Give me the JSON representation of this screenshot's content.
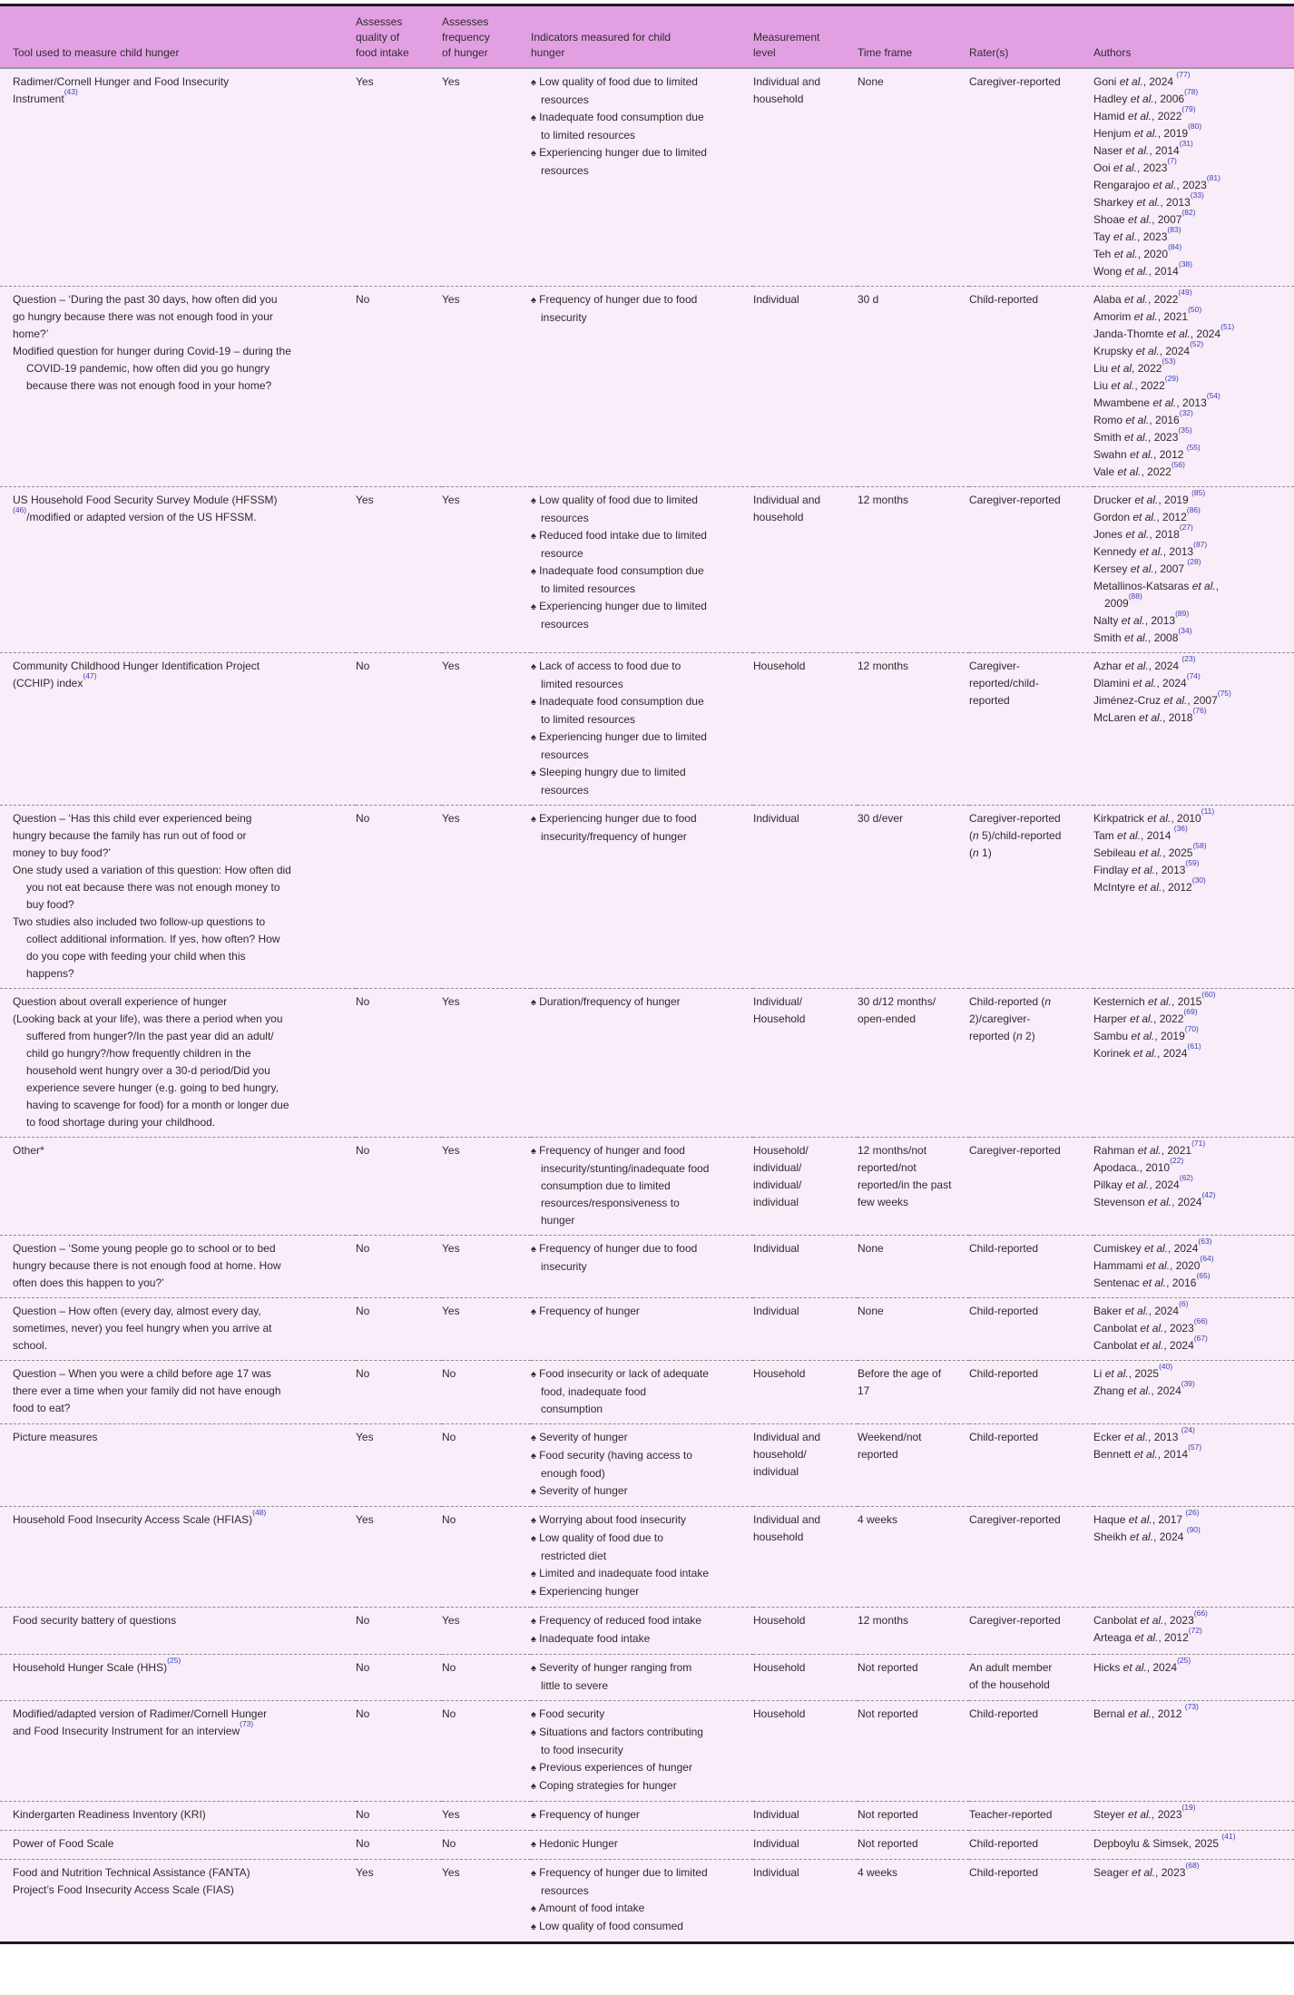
{
  "colors": {
    "header_bg": "#e2a0e3",
    "body_bg": "#f8edf8",
    "text": "#2e2a2e",
    "ref_blue": "#3b3fb8",
    "rule_dark": "#1c1c1c",
    "rule_gray": "#9a9a9a",
    "dash_gray": "#8d8d8d"
  },
  "table": {
    "bullet": "♠",
    "columns": [
      {
        "label": "Tool used to measure child hunger"
      },
      {
        "label": "Assesses quality of food intake"
      },
      {
        "label": "Assesses frequency of hunger"
      },
      {
        "label": "Indicators measured for child hunger"
      },
      {
        "label": "Measurement level"
      },
      {
        "label": "Time frame"
      },
      {
        "label": "Rater(s)"
      },
      {
        "label": "Authors"
      }
    ],
    "rows": [
      {
        "tool": [
          "Radimer/Cornell Hunger and Food Insecurity Instrument^{43}"
        ],
        "quality": "Yes",
        "frequency": "Yes",
        "indicators": [
          "Low quality of food due to limited resources",
          "Inadequate food consumption due to limited resources",
          "Experiencing hunger due to limited resources"
        ],
        "level": "Individual and household",
        "time_frame": "None",
        "rater": "Caregiver-reported",
        "authors": [
          "Goni et al., 2024 ^{77}",
          "Hadley et al., 2006^{78}",
          "Hamid et al., 2022^{79}",
          "Henjum et al., 2019^{80}",
          "Naser et al., 2014^{31}",
          "Ooi et al., 2023^{7}",
          "Rengarajoo et al., 2023^{81}",
          "Sharkey et al., 2013^{33}",
          "Shoae et al., 2007^{82}",
          "Tay et al., 2023^{83}",
          "Teh et al., 2020^{84}",
          "Wong et al., 2014^{38}"
        ]
      },
      {
        "tool": [
          "Question – ‘During the past 30 days, how often did you go hungry because there was not enough food in your home?’",
          "Modified question for hunger during Covid-19 – during the COVID-19 pandemic, how often did you go hungry because there was not enough food in your home?"
        ],
        "quality": "No",
        "frequency": "Yes",
        "indicators": [
          "Frequency of hunger due to food insecurity"
        ],
        "level": "Individual",
        "time_frame": "30 d",
        "rater": "Child-reported",
        "authors": [
          "Alaba et al., 2022^{49}",
          "Amorim et al., 2021^{50}",
          "Janda-Thomte et al., 2024^{51}",
          "Krupsky et al., 2024^{52}",
          "Liu et al, 2022^{53}",
          "Liu et al., 2022^{29}",
          "Mwambene et al., 2013^{54}",
          "Romo et al., 2016^{32}",
          "Smith et al., 2023^{35}",
          "Swahn et al., 2012 ^{55}",
          "Vale et al., 2022^{56}"
        ]
      },
      {
        "tool": [
          "US Household Food Security Survey Module (HFSSM)^{46}/modified or adapted version of the US HFSSM."
        ],
        "quality": "Yes",
        "frequency": "Yes",
        "indicators": [
          "Low quality of food due to limited resources",
          "Reduced food intake due to limited resource",
          "Inadequate food consumption due to limited resources",
          "Experiencing hunger due to limited resources"
        ],
        "level": "Individual and household",
        "time_frame": "12 months",
        "rater": "Caregiver-reported",
        "authors": [
          "Drucker et al., 2019 ^{85}",
          "Gordon et al., 2012^{86}",
          "Jones et al., 2018^{27}",
          "Kennedy et al., 2013^{87}",
          "Kersey et al., 2007 ^{28}",
          "Metallinos-Katsaras et al., 2009^{88}",
          "Nalty et al., 2013^{89}",
          "Smith et al., 2008^{34}"
        ]
      },
      {
        "tool": [
          "Community Childhood Hunger Identification Project (CCHIP) index^{47}"
        ],
        "quality": "No",
        "frequency": "Yes",
        "indicators": [
          "Lack of access to food due to limited resources",
          "Inadequate food consumption due to limited resources",
          "Experiencing hunger due to limited resources",
          "Sleeping hungry due to limited resources"
        ],
        "level": "Household",
        "time_frame": "12 months",
        "rater": "Caregiver-reported/child-reported",
        "authors": [
          "Azhar et al., 2024 ^{23}",
          "Dlamini et al., 2024^{74}",
          "Jiménez-Cruz et al., 2007^{75}",
          "McLaren et al., 2018^{76}"
        ]
      },
      {
        "tool": [
          "Question – ‘Has this child ever experienced being hungry because the family has run out of food or money to buy food?’",
          "One study used a variation of this question: How often did you not eat because there was not enough money to buy food?",
          "Two studies also included two follow-up questions to collect additional information. If yes, how often? How do you cope with feeding your child when this happens?"
        ],
        "quality": "No",
        "frequency": "Yes",
        "indicators": [
          "Experiencing hunger due to food insecurity/frequency of hunger"
        ],
        "level": "Individual",
        "time_frame": "30 d/ever",
        "rater": "Caregiver-reported (n 5)/child-reported (n 1)",
        "authors": [
          "Kirkpatrick et al., 2010^{11}",
          "Tam et al., 2014 ^{36}",
          "Sebileau et al., 2025^{58}",
          "Findlay et al., 2013^{59}",
          "McIntyre et al., 2012^{30}"
        ]
      },
      {
        "tool": [
          "Question about overall experience of hunger",
          "(Looking back at your life), was there a period when you suffered from hunger?/In the past year did an adult/child go hungry?/how frequently children in the household went hungry over a 30-d period/Did you experience severe hunger (e.g. going to bed hungry, having to scavenge for food) for a month or longer due to food shortage during your childhood."
        ],
        "quality": "No",
        "frequency": "Yes",
        "indicators": [
          "Duration/frequency of hunger"
        ],
        "level": "Individual/Household",
        "time_frame": "30 d/12 months/open-ended",
        "rater": "Child-reported (n 2)/caregiver-reported (n 2)",
        "authors": [
          "Kesternich et al., 2015^{60}",
          "Harper et al., 2022^{69}",
          "Sambu et al., 2019^{70}",
          "Korinek et al., 2024^{61}"
        ]
      },
      {
        "tool": [
          "Other*"
        ],
        "quality": "No",
        "frequency": "Yes",
        "indicators": [
          "Frequency of hunger and food insecurity/stunting/inadequate food consumption due to limited resources/responsiveness to hunger"
        ],
        "level": "Household/individual/individual/individual",
        "time_frame": "12 months/not reported/not reported/in the past few weeks",
        "rater": "Caregiver-reported",
        "authors": [
          "Rahman et al., 2021^{71}",
          "Apodaca., 2010^{22}",
          "Pilkay et al., 2024^{62}",
          "Stevenson et al., 2024^{42}"
        ]
      },
      {
        "tool": [
          "Question – ‘Some young people go to school or to bed hungry because there is not enough food at home. How often does this happen to you?’"
        ],
        "quality": "No",
        "frequency": "Yes",
        "indicators": [
          "Frequency of hunger due to food insecurity"
        ],
        "level": "Individual",
        "time_frame": "None",
        "rater": "Child-reported",
        "authors": [
          "Cumiskey et al., 2024^{63}",
          "Hammami et al., 2020^{64}",
          "Sentenac et al., 2016^{65}"
        ]
      },
      {
        "tool": [
          "Question – How often (every day, almost every day, sometimes, never) you feel hungry when you arrive at school."
        ],
        "quality": "No",
        "frequency": "Yes",
        "indicators": [
          "Frequency of hunger"
        ],
        "level": "Individual",
        "time_frame": "None",
        "rater": "Child-reported",
        "authors": [
          "Baker et al., 2024^{6}",
          "Canbolat et al., 2023^{66}",
          "Canbolat et al., 2024^{67}"
        ]
      },
      {
        "tool": [
          "Question – When you were a child before age 17 was there ever a time when your family did not have enough food to eat?"
        ],
        "quality": "No",
        "frequency": "No",
        "indicators": [
          "Food insecurity or lack of adequate food, inadequate food consumption"
        ],
        "level": "Household",
        "time_frame": "Before the age of 17",
        "rater": "Child-reported",
        "authors": [
          "Li et al., 2025^{40}",
          "Zhang et al., 2024^{39}"
        ]
      },
      {
        "tool": [
          "Picture measures"
        ],
        "quality": "Yes",
        "frequency": "No",
        "indicators": [
          "Severity of hunger",
          "Food security (having access to enough food)",
          "Severity of hunger"
        ],
        "level": "Individual and household/individual",
        "time_frame": "Weekend/not reported",
        "rater": "Child-reported",
        "authors": [
          "Ecker et al., 2013 ^{24}",
          "Bennett et al., 2014^{57}"
        ]
      },
      {
        "tool": [
          "Household Food Insecurity Access Scale (HFIAS)^{48}"
        ],
        "quality": "Yes",
        "frequency": "No",
        "indicators": [
          "Worrying about food insecurity",
          "Low quality of food due to restricted diet",
          "Limited and inadequate food intake",
          "Experiencing hunger"
        ],
        "level": "Individual and household",
        "time_frame": "4 weeks",
        "rater": "Caregiver-reported",
        "authors": [
          "Haque et al., 2017 ^{26}",
          "Sheikh et al., 2024 ^{90}"
        ]
      },
      {
        "tool": [
          "Food security battery of questions"
        ],
        "quality": "No",
        "frequency": "Yes",
        "indicators": [
          "Frequency of reduced food intake",
          "Inadequate food intake"
        ],
        "level": "Household",
        "time_frame": "12 months",
        "rater": "Caregiver-reported",
        "authors": [
          "Canbolat et al., 2023^{66}",
          "Arteaga et al., 2012^{72}"
        ]
      },
      {
        "tool": [
          "Household Hunger Scale (HHS)^{25}"
        ],
        "quality": "No",
        "frequency": "No",
        "indicators": [
          "Severity of hunger ranging from little to severe"
        ],
        "level": "Household",
        "time_frame": "Not reported",
        "rater": "An adult member of the household",
        "authors": [
          "Hicks et al., 2024^{25}"
        ]
      },
      {
        "tool": [
          "Modified/adapted version of Radimer/Cornell Hunger and Food Insecurity Instrument for an interview^{73}"
        ],
        "quality": "No",
        "frequency": "No",
        "indicators": [
          "Food security",
          "Situations and factors contributing to food insecurity",
          "Previous experiences of hunger",
          "Coping strategies for hunger"
        ],
        "level": "Household",
        "time_frame": "Not reported",
        "rater": "Child-reported",
        "authors": [
          "Bernal et al., 2012 ^{73}"
        ]
      },
      {
        "tool": [
          "Kindergarten Readiness Inventory (KRI)"
        ],
        "quality": "No",
        "frequency": "Yes",
        "indicators": [
          "Frequency of hunger"
        ],
        "level": "Individual",
        "time_frame": "Not reported",
        "rater": "Teacher-reported",
        "authors": [
          "Steyer et al., 2023^{19}"
        ]
      },
      {
        "tool": [
          "Power of Food Scale"
        ],
        "quality": "No",
        "frequency": "No",
        "indicators": [
          "Hedonic Hunger"
        ],
        "level": "Individual",
        "time_frame": "Not reported",
        "rater": "Child-reported",
        "authors": [
          "Depboylu & Simsek, 2025 ^{41}"
        ]
      },
      {
        "tool": [
          "Food and Nutrition Technical Assistance (FANTA) Project’s Food Insecurity Access Scale (FIAS)"
        ],
        "quality": "Yes",
        "frequency": "Yes",
        "indicators": [
          "Frequency of hunger due to limited resources",
          "Amount of food intake",
          "Low quality of food consumed"
        ],
        "level": "Individual",
        "time_frame": "4 weeks",
        "rater": "Child-reported",
        "authors": [
          "Seager et al., 2023^{68}"
        ]
      }
    ]
  }
}
